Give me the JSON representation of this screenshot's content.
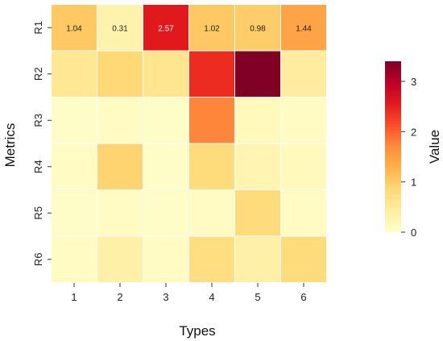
{
  "chart_data": {
    "type": "heatmap",
    "xlabel": "Types",
    "ylabel": "Metrics",
    "x_categories": [
      "1",
      "2",
      "3",
      "4",
      "5",
      "6"
    ],
    "y_categories": [
      "R1",
      "R2",
      "R3",
      "R4",
      "R5",
      "R6"
    ],
    "values": [
      [
        1.04,
        0.31,
        2.57,
        1.02,
        0.98,
        1.44
      ],
      [
        0.55,
        0.85,
        0.6,
        2.4,
        3.4,
        0.45
      ],
      [
        0.05,
        0.1,
        0.05,
        1.75,
        0.15,
        0.1
      ],
      [
        0.1,
        0.9,
        0.05,
        0.8,
        0.25,
        0.15
      ],
      [
        0.05,
        0.1,
        0.05,
        0.1,
        0.8,
        0.1
      ],
      [
        0.1,
        0.35,
        0.1,
        0.75,
        0.35,
        0.8
      ]
    ],
    "annotated_row": 0,
    "colorbar": {
      "label": "Value",
      "range": [
        0,
        3.4
      ],
      "ticks": [
        0,
        1,
        2,
        3
      ],
      "tick_labels": [
        "0",
        "1",
        "2",
        "3"
      ],
      "colormap": "YlOrRd"
    },
    "grid": false
  }
}
